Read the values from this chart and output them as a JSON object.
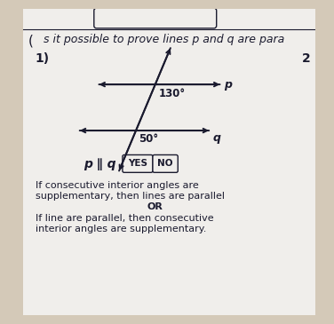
{
  "bg_color": "#d4c9b8",
  "paper_color": "#f0eeeb",
  "title_text": "s it possible to prove lines p and q are para",
  "problem_number": "1)",
  "angle1": "130°",
  "angle2": "50°",
  "label_p": "p",
  "label_q": "q",
  "parallel_label": "p ∥ q",
  "yes_label": "YES",
  "no_label": "NO",
  "body_text_line1": "If consecutive interior angles are",
  "body_text_line2": "supplementary, then lines are parallel",
  "body_text_line3": "OR",
  "body_text_line4": "If line are parallel, then consecutive",
  "body_text_line5": "interior angles are supplementary.",
  "text_color": "#1a1a2e",
  "line_color": "#1a1a2e",
  "font_size_title": 9,
  "font_size_body": 8.0
}
